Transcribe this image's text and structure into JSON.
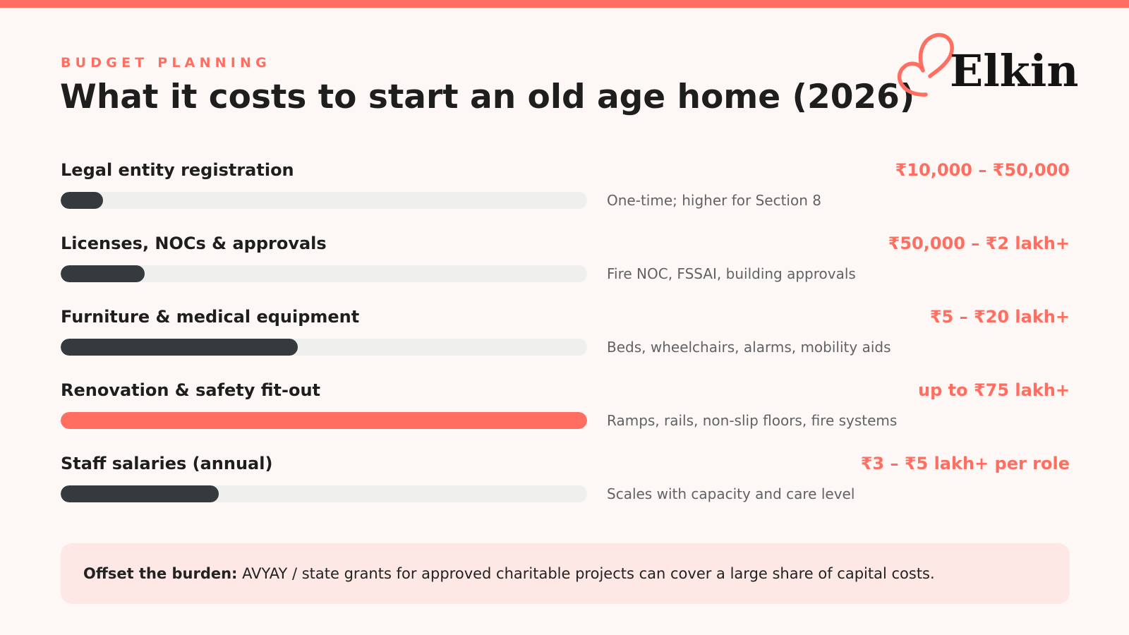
{
  "header": {
    "kicker": "BUDGET PLANNING",
    "title": "What it costs to start an old age home (2026)"
  },
  "logo": {
    "text": "Elkin",
    "icon": "heart-outline-icon",
    "color": "#ff6e60"
  },
  "colors": {
    "accent": "#ff6e60",
    "bar_dark": "#343a3d",
    "track": "#efefee",
    "callout_bg": "#fde8e6",
    "background": "#fdf8f6"
  },
  "cost_items": [
    {
      "label": "Legal entity registration",
      "cost": "₹10,000 – ₹50,000",
      "note": "One-time; higher for Section 8",
      "relative_level": 0.08,
      "highlight": false
    },
    {
      "label": "Licenses, NOCs & approvals",
      "cost": "₹50,000 – ₹2 lakh+",
      "note": "Fire NOC, FSSAI, building approvals",
      "relative_level": 0.16,
      "highlight": false
    },
    {
      "label": "Furniture & medical equipment",
      "cost": "₹5 – ₹20 lakh+",
      "note": "Beds, wheelchairs, alarms, mobility aids",
      "relative_level": 0.45,
      "highlight": false
    },
    {
      "label": "Renovation & safety fit-out",
      "cost": "up to ₹75 lakh+",
      "note": "Ramps, rails, non-slip floors, fire systems",
      "relative_level": 1.0,
      "highlight": true
    },
    {
      "label": "Staff salaries (annual)",
      "cost": "₹3 – ₹5 lakh+ per role",
      "note": "Scales with capacity and care level",
      "relative_level": 0.3,
      "highlight": false
    }
  ],
  "callout": {
    "lead": "Offset the burden:",
    "text": "AVYAY / state grants for approved charitable projects can cover a large share of capital costs."
  }
}
